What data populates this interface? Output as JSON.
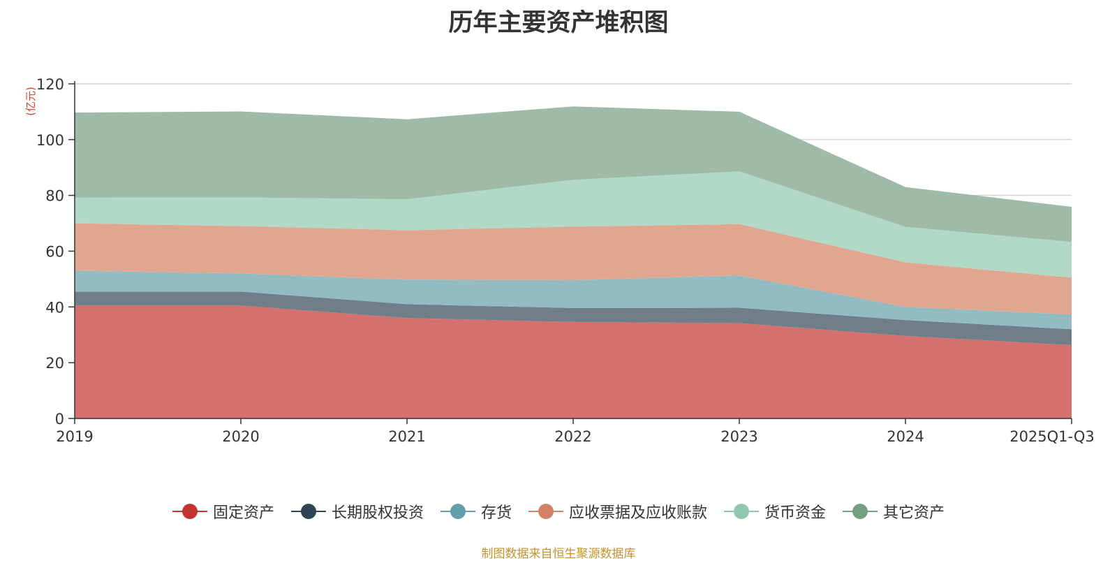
{
  "chart_data": {
    "type": "area",
    "stacked": true,
    "title": "历年主要资产堆积图",
    "ylabel": "(亿元)",
    "xlabel": "",
    "categories": [
      "2019",
      "2020",
      "2021",
      "2022",
      "2023",
      "2024",
      "2025Q1-Q3"
    ],
    "ylim": [
      0,
      120
    ],
    "yticks": [
      0,
      20,
      40,
      60,
      80,
      100,
      120
    ],
    "grid": true,
    "legend_position": "bottom",
    "series": [
      {
        "name": "固定资产",
        "color": "#c23531",
        "fill": "#d4706d",
        "values": [
          40.5,
          40.5,
          36,
          34.6,
          34.2,
          29.6,
          26.3
        ]
      },
      {
        "name": "长期股权投资",
        "color": "#2f4554",
        "fill": "#6f7e89",
        "values": [
          5,
          5,
          5,
          5,
          5.5,
          5.7,
          5.7
        ]
      },
      {
        "name": "存货",
        "color": "#61a0a8",
        "fill": "#92bcc2",
        "values": [
          7.5,
          6.5,
          8.8,
          10,
          11.6,
          4.7,
          5.3
        ]
      },
      {
        "name": "应收票据及应收账款",
        "color": "#d48265",
        "fill": "#e0a690",
        "values": [
          17,
          17,
          17.7,
          19.2,
          18.4,
          16,
          13.2
        ]
      },
      {
        "name": "货币资金",
        "color": "#91c7ae",
        "fill": "#b2d8c6",
        "values": [
          9.2,
          10.3,
          11.1,
          16.8,
          18.9,
          12.7,
          12.8
        ]
      },
      {
        "name": "其它资产",
        "color": "#749f83",
        "fill": "#9fbaa8",
        "values": [
          30.5,
          30.8,
          28.7,
          26.3,
          21.4,
          14.3,
          12.6
        ]
      }
    ]
  },
  "source_text": "制图数据来自恒生聚源数据库"
}
